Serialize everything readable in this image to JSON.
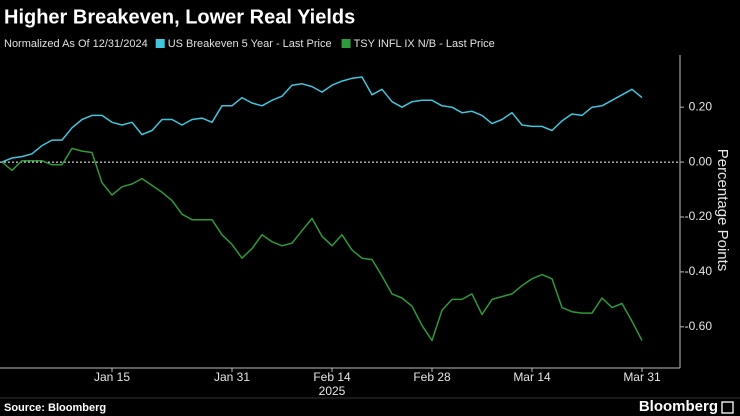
{
  "chart_data": {
    "type": "line",
    "title": "Higher Breakeven, Lower Real Yields",
    "subtitle": "Normalized As Of 12/31/2024",
    "ylabel": "Percentage Points",
    "xlabel": "2025",
    "source": "Source: Bloomberg",
    "brand": "Bloomberg",
    "categories": [
      null,
      null,
      null,
      null,
      null,
      null,
      null,
      null,
      null,
      null,
      null,
      "Jan 15",
      null,
      null,
      null,
      null,
      null,
      null,
      null,
      null,
      null,
      null,
      null,
      "Jan 31",
      null,
      null,
      null,
      null,
      null,
      null,
      null,
      null,
      null,
      "Feb 14",
      null,
      null,
      null,
      null,
      null,
      null,
      null,
      null,
      null,
      "Feb 28",
      null,
      null,
      null,
      null,
      null,
      null,
      null,
      null,
      null,
      "Mar 14",
      null,
      null,
      null,
      null,
      null,
      null,
      null,
      null,
      null,
      null,
      "Mar 31"
    ],
    "series": [
      {
        "name": "US Breakeven 5 Year - Last Price",
        "color": "#3fc6de",
        "values": [
          0,
          0.015,
          0.02,
          0.03,
          0.06,
          0.08,
          0.08,
          0.125,
          0.155,
          0.17,
          0.17,
          0.145,
          0.135,
          0.145,
          0.1,
          0.115,
          0.155,
          0.155,
          0.135,
          0.155,
          0.16,
          0.145,
          0.205,
          0.205,
          0.235,
          0.215,
          0.205,
          0.225,
          0.24,
          0.28,
          0.285,
          0.275,
          0.255,
          0.28,
          0.295,
          0.305,
          0.31,
          0.245,
          0.265,
          0.22,
          0.2,
          0.22,
          0.225,
          0.225,
          0.205,
          0.2,
          0.18,
          0.185,
          0.17,
          0.14,
          0.155,
          0.18,
          0.135,
          0.13,
          0.13,
          0.115,
          0.15,
          0.175,
          0.17,
          0.2,
          0.205,
          0.225,
          0.245,
          0.265,
          0.235
        ]
      },
      {
        "name": "TSY INFL IX N/B - Last Price",
        "color": "#2e9a3a",
        "values": [
          0,
          -0.03,
          0.005,
          0.005,
          0.005,
          -0.01,
          -0.01,
          0.05,
          0.04,
          0.035,
          -0.075,
          -0.12,
          -0.09,
          -0.08,
          -0.06,
          -0.085,
          -0.11,
          -0.14,
          -0.19,
          -0.21,
          -0.21,
          -0.21,
          -0.265,
          -0.3,
          -0.35,
          -0.315,
          -0.265,
          -0.29,
          -0.305,
          -0.295,
          -0.25,
          -0.205,
          -0.27,
          -0.305,
          -0.265,
          -0.32,
          -0.35,
          -0.355,
          -0.415,
          -0.48,
          -0.495,
          -0.525,
          -0.595,
          -0.65,
          -0.54,
          -0.5,
          -0.5,
          -0.48,
          -0.555,
          -0.5,
          -0.49,
          -0.48,
          -0.45,
          -0.425,
          -0.41,
          -0.425,
          -0.53,
          -0.545,
          -0.55,
          -0.55,
          -0.495,
          -0.53,
          -0.515,
          -0.58,
          -0.65
        ]
      }
    ],
    "ylim": [
      -0.75,
      0.39
    ],
    "yticks": [
      {
        "value": -0.6,
        "label": "-0.60"
      },
      {
        "value": -0.4,
        "label": "-0.40"
      },
      {
        "value": -0.2,
        "label": "-0.20"
      },
      {
        "value": 0,
        "label": "0.00"
      },
      {
        "value": 0.2,
        "label": "0.20"
      }
    ],
    "zero_line": true,
    "grid": false
  }
}
